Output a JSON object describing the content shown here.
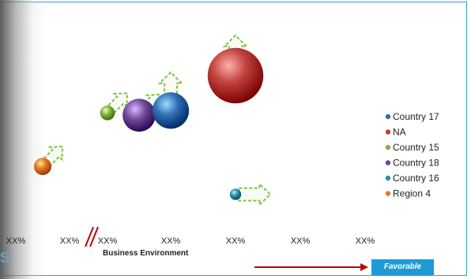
{
  "chart_data": {
    "type": "scatter",
    "xlabel": "Business Environment",
    "x_ticks": [
      "XX%",
      "XX%",
      "XX%",
      "XX%",
      "XX%",
      "XX%",
      "XX%"
    ],
    "points": [
      {
        "name": "Region 4",
        "x": 0.5,
        "y": 0.24,
        "size": 1.0,
        "color": "#e27a26",
        "arrow": "up-right"
      },
      {
        "name": "Country 15",
        "x": 2.0,
        "y": 0.47,
        "size": 0.85,
        "color": "#7fb244",
        "arrow": "up-right"
      },
      {
        "name": "Country 18",
        "x": 2.5,
        "y": 0.46,
        "size": 1.9,
        "color": "#6e4a98",
        "arrow": "up-right"
      },
      {
        "name": "Country 17",
        "x": 3.0,
        "y": 0.48,
        "size": 2.1,
        "color": "#2f6fb2",
        "arrow": "up"
      },
      {
        "name": "NA",
        "x": 4.0,
        "y": 0.63,
        "size": 3.2,
        "color": "#c0413d",
        "arrow": "up"
      },
      {
        "name": "Country 16",
        "x": 4.0,
        "y": 0.12,
        "size": 0.65,
        "color": "#2f8fae",
        "arrow": "right"
      }
    ],
    "legend": [
      {
        "label": "Country 17",
        "color": "#2f6fb2"
      },
      {
        "label": "NA",
        "color": "#c0413d"
      },
      {
        "label": "Country 15",
        "color": "#7fb244"
      },
      {
        "label": "Country 18",
        "color": "#6e4a98"
      },
      {
        "label": "Country 16",
        "color": "#2f8fae"
      },
      {
        "label": "Region 4",
        "color": "#e27a26"
      }
    ],
    "legend_position": "right",
    "axis_break": true,
    "grid": false
  },
  "favorable_label": "Favorable",
  "corner_glyph": "S",
  "colors": {
    "frame": "#2aa0d6",
    "favorable_arrow": "#c00000",
    "favorable_button": "#1d9bd6",
    "trend_arrow": "#7fc241"
  }
}
